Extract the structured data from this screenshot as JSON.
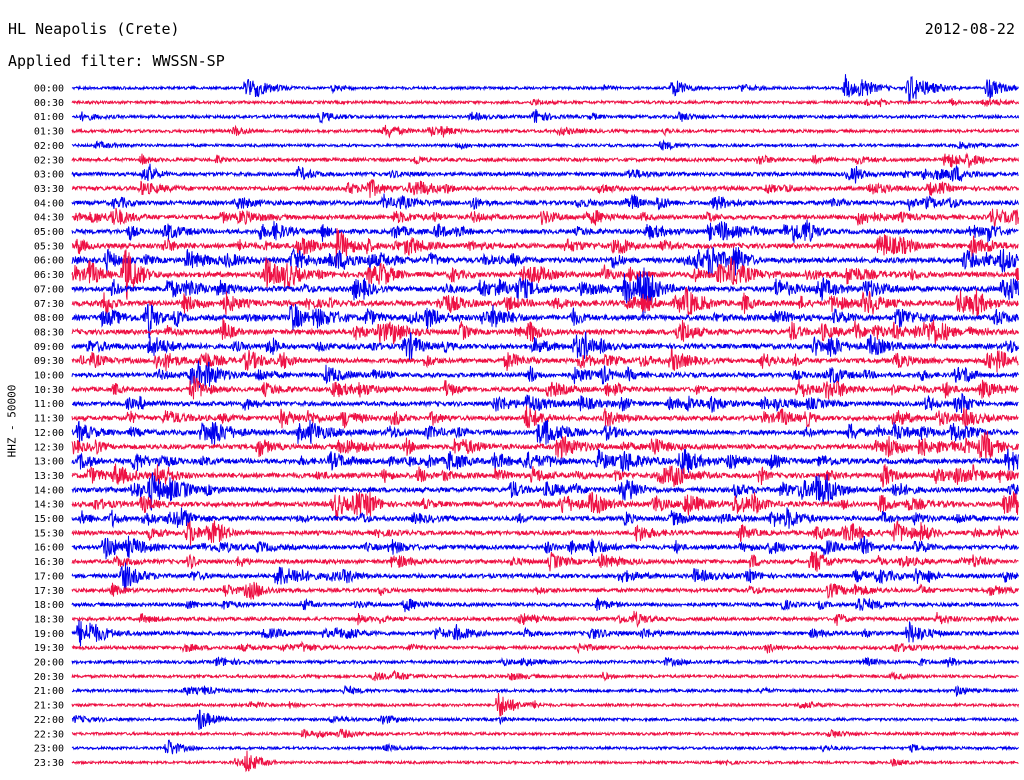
{
  "header": {
    "station": "HL Neapolis (Crete)",
    "filter": "Applied filter: WWSSN-SP",
    "date": "2012-08-22"
  },
  "chart_data": {
    "type": "line",
    "title": "HL Neapolis (Crete)",
    "subtitle": "Applied filter: WWSSN-SP",
    "date": "2012-08-22",
    "ylabel": "HHZ - 50000",
    "row_labels": [
      "00:00",
      "00:30",
      "01:00",
      "01:30",
      "02:00",
      "02:30",
      "03:00",
      "03:30",
      "04:00",
      "04:30",
      "05:00",
      "05:30",
      "06:00",
      "06:30",
      "07:00",
      "07:30",
      "08:00",
      "08:30",
      "09:00",
      "09:30",
      "10:00",
      "10:30",
      "11:00",
      "11:30",
      "12:00",
      "12:30",
      "13:00",
      "13:30",
      "14:00",
      "14:30",
      "15:00",
      "15:30",
      "16:00",
      "16:30",
      "17:00",
      "17:30",
      "18:00",
      "18:30",
      "19:00",
      "19:30",
      "20:00",
      "20:30",
      "21:00",
      "21:30",
      "22:00",
      "22:30",
      "23:00",
      "23:30"
    ],
    "trace_colors": [
      "#0000ee",
      "#ee1144"
    ],
    "row_activity": [
      0.15,
      0.2,
      0.25,
      0.25,
      0.15,
      0.35,
      0.45,
      0.55,
      0.6,
      0.65,
      0.7,
      0.85,
      0.95,
      0.9,
      0.9,
      0.95,
      0.9,
      0.85,
      0.8,
      0.75,
      0.7,
      0.65,
      0.65,
      0.7,
      0.8,
      0.8,
      0.85,
      0.85,
      0.8,
      0.8,
      0.7,
      0.6,
      0.6,
      0.55,
      0.55,
      0.45,
      0.4,
      0.35,
      0.45,
      0.3,
      0.25,
      0.2,
      0.2,
      0.15,
      0.15,
      0.15,
      0.1,
      0.1
    ],
    "events": [
      {
        "row": 0,
        "minute": 24.5,
        "amp": 14
      },
      {
        "row": 0,
        "minute": 25.0,
        "amp": 12
      },
      {
        "row": 0,
        "minute": 26.5,
        "amp": 16
      },
      {
        "row": 0,
        "minute": 29.0,
        "amp": 12
      },
      {
        "row": 0,
        "minute": 5.5,
        "amp": 10
      },
      {
        "row": 0,
        "minute": 19.0,
        "amp": 10
      },
      {
        "row": 13,
        "minute": 0.5,
        "amp": 14
      },
      {
        "row": 14,
        "minute": 17.5,
        "amp": 14
      },
      {
        "row": 21,
        "minute": 23.0,
        "amp": 10
      },
      {
        "row": 32,
        "minute": 1.0,
        "amp": 12
      },
      {
        "row": 34,
        "minute": 6.5,
        "amp": 12
      },
      {
        "row": 38,
        "minute": 0.2,
        "amp": 14
      },
      {
        "row": 38,
        "minute": 26.5,
        "amp": 12
      },
      {
        "row": 43,
        "minute": 13.5,
        "amp": 14
      },
      {
        "row": 44,
        "minute": 4.0,
        "amp": 12
      },
      {
        "row": 46,
        "minute": 3.0,
        "amp": 10
      },
      {
        "row": 47,
        "minute": 5.5,
        "amp": 12
      }
    ]
  }
}
